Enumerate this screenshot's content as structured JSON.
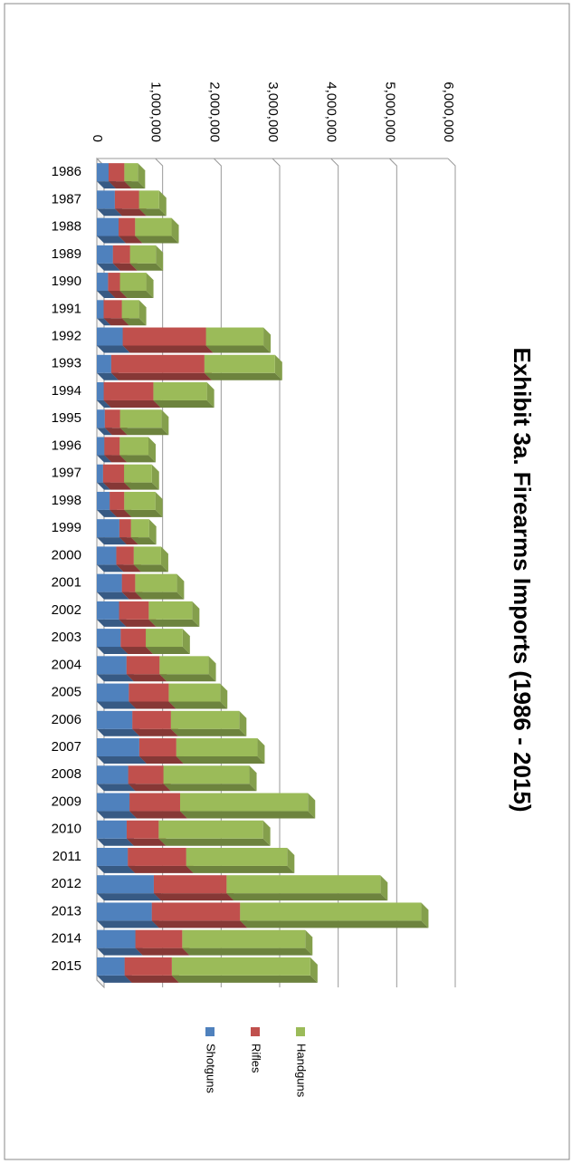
{
  "chart_data": {
    "type": "stacked_bar",
    "title": "Exhibit 3a. Firearms Imports (1986 - 2015)",
    "categories": [
      "1986",
      "1987",
      "1988",
      "1989",
      "1990",
      "1991",
      "1992",
      "1993",
      "1994",
      "1995",
      "1996",
      "1997",
      "1998",
      "1999",
      "2000",
      "2001",
      "2002",
      "2003",
      "2004",
      "2005",
      "2006",
      "2007",
      "2008",
      "2009",
      "2010",
      "2011",
      "2012",
      "2013",
      "2014",
      "2015"
    ],
    "series": [
      {
        "name": "Shotguns",
        "color": "#4f81bd",
        "values": [
          201000,
          307620,
          372008,
          274497,
          191787,
          116141,
          441933,
          246114,
          117866,
          136126,
          128456,
          106296,
          219387,
          385556,
          331985,
          428330,
          379755,
          407402,
          507050,
          546403,
          606820,
          725752,
          535960,
          558679,
          509913,
          529056,
          973465,
          939402,
          658710,
          474611
        ]
      },
      {
        "name": "Rifles",
        "color": "#c0504d",
        "values": [
          269000,
          413780,
          282640,
          293152,
          203505,
          311285,
          1423189,
          1592522,
          847868,
          261185,
          262568,
          358937,
          248742,
          198191,
          298894,
          227554,
          507637,
          428837,
          564953,
          682100,
          659393,
          631781,
          602364,
          863906,
          547449,
          998072,
          1243924,
          1507776,
          800770,
          807281
        ]
      },
      {
        "name": "Handguns",
        "color": "#9bbb59",
        "values": [
          231000,
          342113,
          621620,
          440132,
          448517,
          293231,
          981588,
          1204896,
          915168,
          706093,
          490554,
          474182,
          531681,
          308052,
          465903,
          710958,
          741845,
          630263,
          838856,
          878172,
          1166309,
          1386460,
          1468027,
          2184417,
          1782585,
          1725276,
          2627201,
          3095528,
          2101332,
          2365318
        ]
      }
    ],
    "ylim": [
      0,
      6000000
    ],
    "yticks": [
      0,
      {
        "value": 1000000,
        "label": "1,000,000"
      },
      {
        "value": 2000000,
        "label": "2,000,000"
      },
      {
        "value": 3000000,
        "label": "3,000,000"
      },
      {
        "value": 4000000,
        "label": "4,000,000"
      },
      {
        "value": 5000000,
        "label": "5,000,000"
      },
      {
        "value": 6000000,
        "label": "6,000,000"
      }
    ],
    "grid": true,
    "legend": "right",
    "rotation": 90
  }
}
